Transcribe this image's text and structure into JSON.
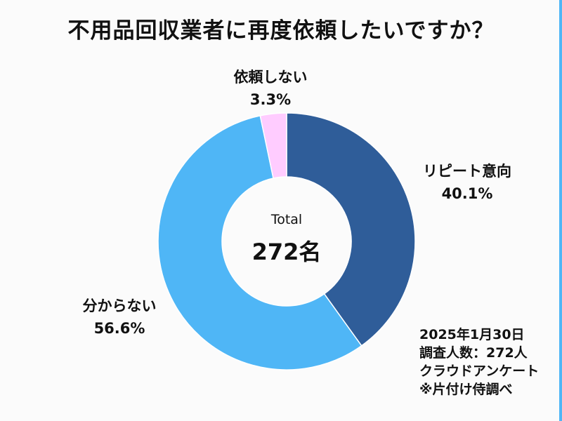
{
  "chart_data": {
    "type": "pie",
    "title": "不用品回収業者に再度依頼したいですか？",
    "center_label": "Total",
    "center_value": "272名",
    "slices": [
      {
        "label": "リピート意向",
        "value": 40.1,
        "display": "40.1%",
        "color": "#2f5d99"
      },
      {
        "label": "分からない",
        "value": 56.6,
        "display": "56.6%",
        "color": "#4fb6f6"
      },
      {
        "label": "依頼しない",
        "value": 3.3,
        "display": "3.3%",
        "color": "#ffccff"
      }
    ]
  },
  "notes": [
    "2025年1月30日",
    "調査人数：272人",
    "クラウドアンケート",
    "※片付け侍調べ"
  ]
}
